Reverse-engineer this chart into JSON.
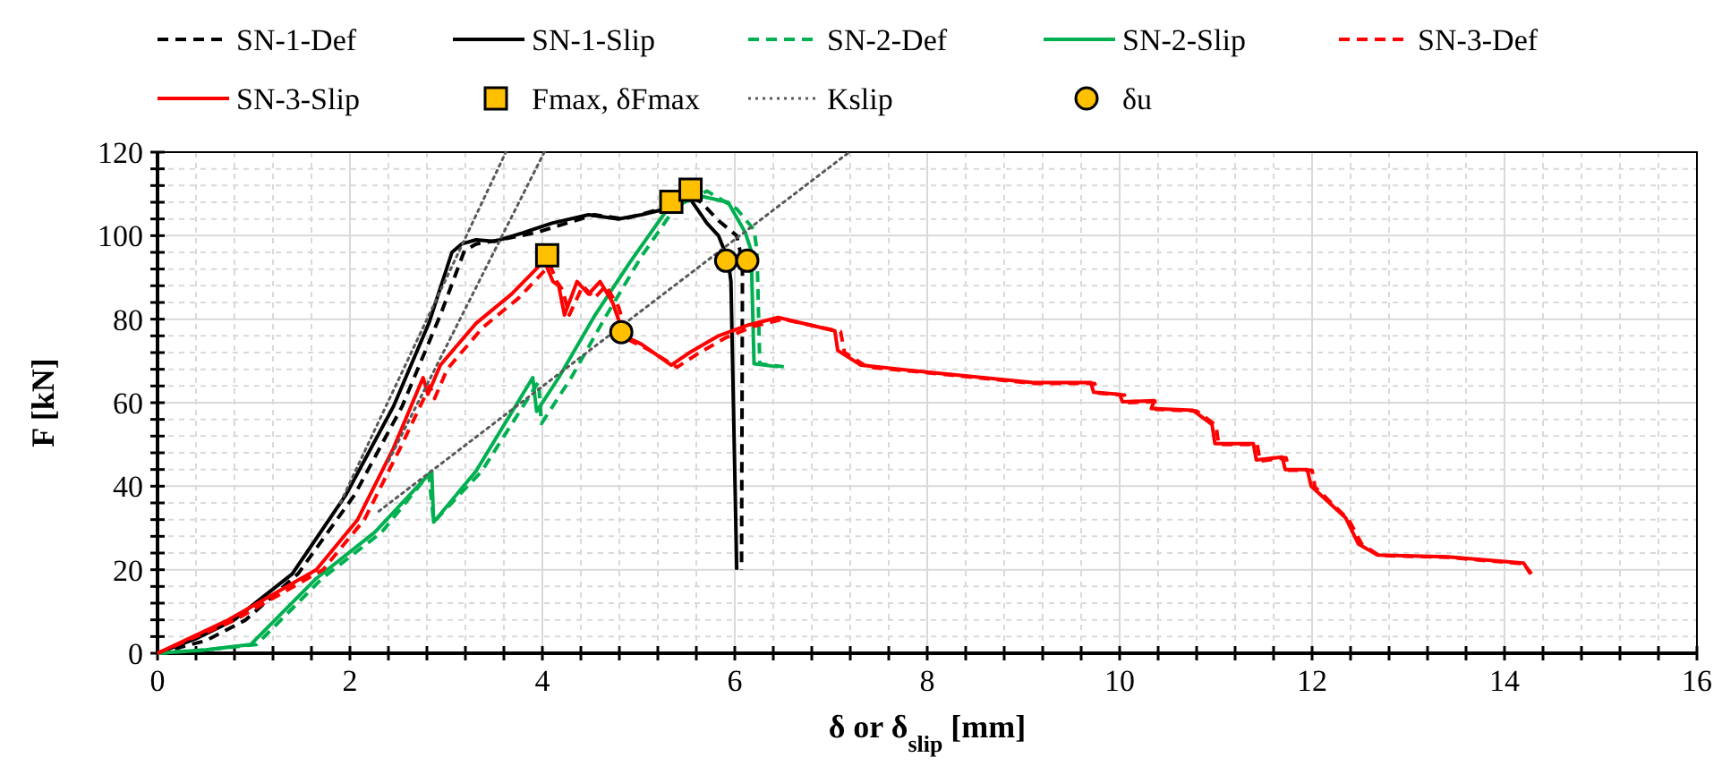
{
  "chart_data": {
    "type": "line",
    "xlabel": "δ or δ$_{slip}$ [mm]",
    "ylabel": "F [kN]",
    "xlim": [
      0,
      16
    ],
    "ylim": [
      0,
      120
    ],
    "xticks": [
      0,
      2,
      4,
      6,
      8,
      10,
      12,
      14,
      16
    ],
    "yticks": [
      0,
      20,
      40,
      60,
      80,
      100,
      120
    ],
    "grid": true,
    "legend": "top",
    "series": [
      {
        "name": "SN-1-Def",
        "type": "line",
        "line_style": "dashed",
        "color": "#000000",
        "x": [
          0,
          0.5,
          0.91,
          1.46,
          2.05,
          2.54,
          2.94,
          3.19,
          3.31,
          3.56,
          3.93,
          4.54,
          4.85,
          5.28,
          5.5,
          5.65,
          5.83,
          6.02,
          6.08,
          6.07
        ],
        "values": [
          0,
          3,
          7.9,
          19,
          38,
          59,
          81,
          96.4,
          98,
          99,
          100.7,
          105,
          104,
          106.7,
          110,
          108,
          103.6,
          100,
          93.6,
          20
        ]
      },
      {
        "name": "SN-1-Slip",
        "type": "line",
        "line_style": "solid",
        "color": "#000000",
        "x": [
          0,
          0.4,
          0.79,
          1.4,
          1.96,
          2.45,
          2.82,
          3.06,
          3.16,
          3.31,
          3.5,
          3.8,
          4.1,
          4.48,
          4.79,
          5.03,
          5.28,
          5.5,
          5.59,
          5.71,
          5.83,
          5.93,
          5.96,
          6.02
        ],
        "values": [
          0,
          3.5,
          7.9,
          19,
          38,
          59,
          79,
          96,
          98,
          99,
          98.6,
          100.7,
          103,
          105,
          104,
          105,
          106.4,
          110,
          107,
          103,
          100,
          94.3,
          89,
          20
        ]
      },
      {
        "name": "SN-2-Def",
        "type": "line",
        "line_style": "dashed",
        "color": "#00b050",
        "x": [
          0,
          0.5,
          1.03,
          1.71,
          2.33,
          2.82,
          2.87,
          3.37,
          3.96,
          3.99,
          4.3,
          4.66,
          5.03,
          5.37,
          5.71,
          6.02,
          6.2,
          6.23,
          6.26,
          6.51
        ],
        "values": [
          0,
          0.8,
          2.1,
          17.9,
          29,
          42.9,
          31.4,
          43.6,
          65,
          55,
          66,
          80.7,
          95,
          106.4,
          110.7,
          106.4,
          101.4,
          96.4,
          69.3,
          68.6
        ]
      },
      {
        "name": "SN-2-Slip",
        "type": "line",
        "line_style": "solid",
        "color": "#00b050",
        "x": [
          0,
          0.5,
          0.97,
          1.65,
          2.26,
          2.85,
          2.87,
          3.31,
          3.9,
          3.94,
          4.17,
          4.54,
          4.91,
          5.28,
          5.62,
          5.93,
          6.11,
          6.17,
          6.2,
          6.45
        ],
        "values": [
          0,
          0.8,
          2.1,
          17.9,
          29,
          43.6,
          31.4,
          43.6,
          66,
          57.9,
          66,
          80.7,
          93.6,
          105.7,
          109.6,
          108,
          100.7,
          96.4,
          69.3,
          68.6
        ]
      },
      {
        "name": "SN-3-Def",
        "type": "line",
        "line_style": "dashed",
        "color": "#ff0000",
        "x": [
          0,
          0.8,
          1.72,
          2.15,
          2.52,
          2.83,
          2.88,
          3.01,
          3.38,
          3.75,
          4.08,
          4.15,
          4.21,
          4.28,
          4.42,
          4.54,
          4.66,
          4.79,
          4.9,
          5.08,
          5.4,
          5.6,
          5.9,
          6.2,
          6.5,
          7.1,
          7.14,
          7.38,
          8.0,
          9.12,
          9.74,
          9.78,
          10.05,
          10.08,
          10.4,
          10.38,
          10.8,
          11.0,
          11.03,
          11.43,
          11.46,
          11.73,
          11.76,
          12.0,
          12.03,
          12.38,
          12.52,
          12.7,
          13.4,
          14.2,
          14.28
        ],
        "values": [
          0,
          7.9,
          20,
          32,
          49,
          64,
          61,
          68,
          78,
          85,
          93,
          89,
          87,
          81,
          88,
          85,
          88,
          83,
          75,
          73,
          68.5,
          71.5,
          75.5,
          78.3,
          80,
          77,
          72,
          68.5,
          67.2,
          64.6,
          64.6,
          62.3,
          61.8,
          60,
          60.3,
          58.4,
          58,
          54.6,
          50,
          50,
          46,
          46.8,
          43.8,
          43.8,
          39.8,
          32,
          26,
          23.4,
          23,
          21.4,
          19
        ]
      },
      {
        "name": "SN-3-Slip",
        "type": "line",
        "line_style": "solid",
        "color": "#ff0000",
        "x": [
          0,
          0.73,
          1.65,
          2.08,
          2.45,
          2.76,
          2.81,
          2.94,
          3.31,
          3.68,
          4.02,
          4.11,
          4.17,
          4.23,
          4.36,
          4.48,
          4.6,
          4.73,
          4.85,
          5.03,
          5.34,
          5.53,
          5.83,
          6.14,
          6.45,
          7.04,
          7.07,
          7.31,
          7.97,
          9.1,
          9.7,
          9.73,
          10.0,
          10.03,
          10.36,
          10.33,
          10.76,
          10.96,
          10.99,
          11.39,
          11.42,
          11.69,
          11.72,
          11.95,
          11.99,
          12.35,
          12.48,
          12.68,
          13.41,
          14.2,
          14.27
        ],
        "values": [
          0,
          7.9,
          20,
          32,
          49,
          66,
          62,
          69,
          79,
          86,
          94,
          89,
          88,
          81,
          89,
          86,
          89,
          84,
          76,
          74,
          69,
          72,
          76,
          78.6,
          80.4,
          77.2,
          72.5,
          69,
          67.4,
          64.8,
          64.8,
          62.5,
          62,
          60.2,
          60.5,
          58.6,
          58.2,
          54.8,
          50.2,
          50.2,
          46.3,
          47,
          44,
          44,
          40,
          32.4,
          26.2,
          23.5,
          23.1,
          21.6,
          19
        ]
      },
      {
        "name": "Fmax, δFmax",
        "type": "scatter",
        "marker": "square",
        "color": "#ffc000",
        "x": [
          4.05,
          5.34,
          5.54
        ],
        "values": [
          95.3,
          108.1,
          111
        ]
      },
      {
        "name": "Kslip",
        "type": "line",
        "line_style": "dotted",
        "color": "#595959",
        "x": [
          1.9,
          3.62
        ],
        "values": [
          36,
          120
        ]
      },
      {
        "type": "line",
        "line_style": "dotted",
        "color": "#595959",
        "x": [
          2.4,
          4.02
        ],
        "values": [
          46,
          120
        ]
      },
      {
        "type": "line",
        "line_style": "dotted",
        "color": "#595959",
        "x": [
          2.3,
          7.19
        ],
        "values": [
          34,
          120
        ]
      },
      {
        "name": "δu",
        "type": "scatter",
        "marker": "circle",
        "color": "#ffc000",
        "x": [
          4.82,
          5.91,
          6.13
        ],
        "values": [
          76.9,
          94,
          94
        ]
      }
    ]
  }
}
